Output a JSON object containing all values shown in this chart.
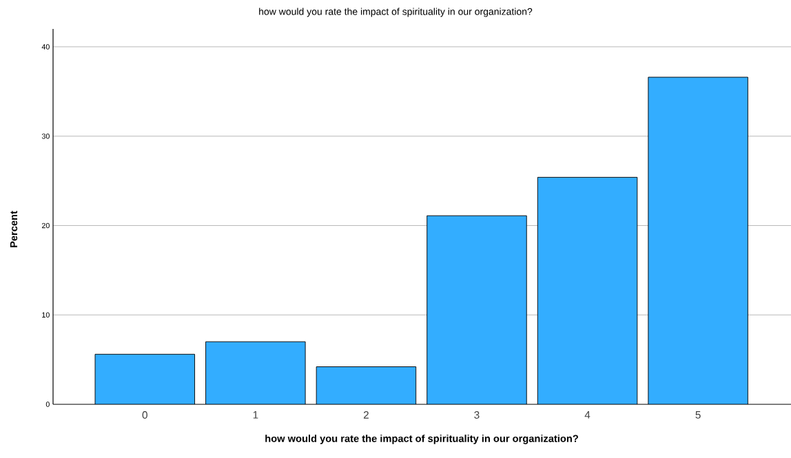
{
  "chart_data": {
    "type": "bar",
    "title": "how would you rate the impact of spirituality in our organization?",
    "xlabel": "how would you rate the impact of spirituality in our organization?",
    "ylabel": "Percent",
    "categories": [
      "0",
      "1",
      "2",
      "3",
      "4",
      "5"
    ],
    "values": [
      5.6,
      7.0,
      4.2,
      21.1,
      25.4,
      36.6
    ],
    "color": "#33adff",
    "ylim": [
      0,
      42
    ],
    "yticks": [
      0,
      10,
      20,
      30,
      40
    ],
    "grid": "y"
  }
}
